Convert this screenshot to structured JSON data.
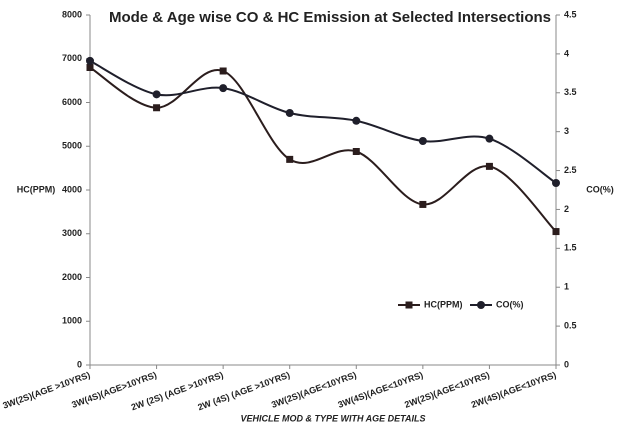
{
  "chart_data": {
    "type": "line",
    "title": "Mode & Age wise CO & HC Emission  at Selected Intersections",
    "x_label": "VEHICLE MOD & TYPE WITH AGE DETAILS",
    "y_label": "HC(PPM)",
    "y2_label": "CO(%)",
    "categories": [
      "3W(2S)(AGE >10YRS)",
      "3W(4S)(AGE>10YRS)",
      "2W (2S) (AGE >10YRS)",
      "2W (4S) (AGE >10YRS)",
      "3W(2S)(AGE<10YRS)",
      "3W(4S)(AGE<10YRS)",
      "2W(2S)(AGE<10YRS)",
      "2W(4S)(AGE<10YRS)"
    ],
    "series": [
      {
        "name": "HC(PPM)",
        "color": "#2b1d1d",
        "marker": "square",
        "values": [
          6800,
          5880,
          6720,
          4700,
          4880,
          3670,
          4540,
          3050
        ]
      },
      {
        "name": "CO(%)",
        "color": "#1f1f2b",
        "marker": "circle",
        "axis": "y2",
        "values": [
          3.91,
          3.48,
          3.56,
          3.24,
          3.14,
          2.88,
          2.91,
          2.34
        ]
      }
    ],
    "ylim": [
      0,
      8000
    ],
    "yticks": [
      0,
      1000,
      2000,
      3000,
      4000,
      5000,
      6000,
      7000,
      8000
    ],
    "y2lim": [
      0,
      4.5
    ],
    "y2ticks": [
      0,
      0.5,
      1,
      1.5,
      2,
      2.5,
      3,
      3.5,
      4,
      4.5
    ],
    "legend": "lower right"
  }
}
